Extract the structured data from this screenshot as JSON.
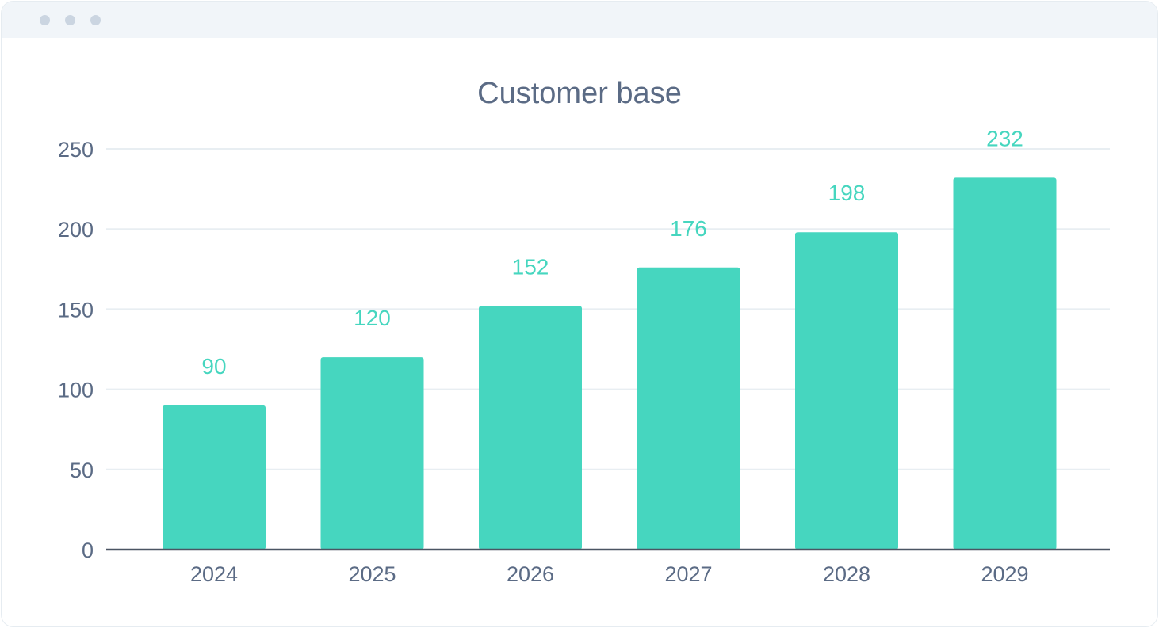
{
  "window": {
    "dots": [
      "window-dot",
      "window-dot",
      "window-dot"
    ]
  },
  "chart_data": {
    "type": "bar",
    "title": "Customer base",
    "xlabel": "",
    "ylabel": "",
    "categories": [
      "2024",
      "2025",
      "2026",
      "2027",
      "2028",
      "2029"
    ],
    "values": [
      90,
      120,
      152,
      176,
      198,
      232
    ],
    "data_labels": [
      "90",
      "120",
      "152",
      "176",
      "198",
      "232"
    ],
    "ylim": [
      0,
      250
    ],
    "yticks": [
      0,
      50,
      100,
      150,
      200,
      250
    ],
    "ytick_labels": [
      "0",
      "50",
      "100",
      "150",
      "200",
      "250"
    ],
    "grid": true,
    "legend": "none",
    "colors": {
      "bar": "#46d6bf",
      "data_label": "#46d6bf",
      "grid": "#e8eef2",
      "axis": "#4b5563",
      "text": "#5b6b85"
    }
  }
}
